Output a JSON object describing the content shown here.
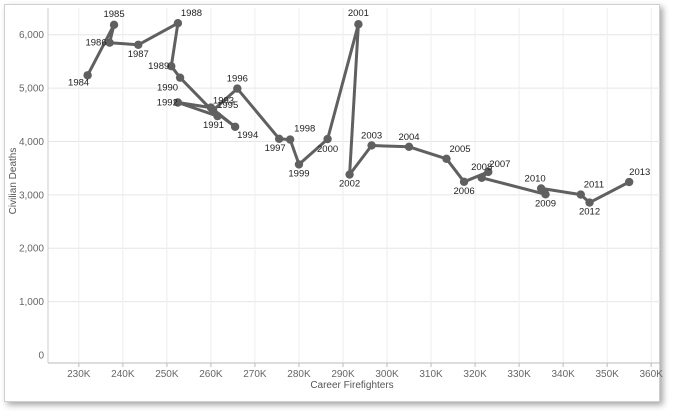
{
  "chart_data": {
    "type": "scatter",
    "connected": true,
    "xlabel": "Career Firefighters",
    "ylabel": "Civilian Deaths",
    "xlim": [
      223000,
      362000
    ],
    "ylim": [
      -150,
      6500
    ],
    "x_ticks": [
      230000,
      240000,
      250000,
      260000,
      270000,
      280000,
      290000,
      300000,
      310000,
      320000,
      330000,
      340000,
      350000,
      360000
    ],
    "x_tick_labels": [
      "230K",
      "240K",
      "250K",
      "260K",
      "270K",
      "280K",
      "290K",
      "300K",
      "310K",
      "320K",
      "330K",
      "340K",
      "350K",
      "360K"
    ],
    "y_ticks": [
      0,
      1000,
      2000,
      3000,
      4000,
      5000,
      6000
    ],
    "y_tick_labels": [
      "0",
      "1,000",
      "2,000",
      "3,000",
      "4,000",
      "5,000",
      "6,000"
    ],
    "grid": true,
    "line_color": "#606060",
    "points": [
      {
        "label": "1984",
        "x": 232000,
        "y": 5240
      },
      {
        "label": "1985",
        "x": 238000,
        "y": 6185
      },
      {
        "label": "1986",
        "x": 237000,
        "y": 5850
      },
      {
        "label": "1987",
        "x": 243500,
        "y": 5810
      },
      {
        "label": "1988",
        "x": 252500,
        "y": 6215
      },
      {
        "label": "1989",
        "x": 251000,
        "y": 5410
      },
      {
        "label": "1990",
        "x": 253000,
        "y": 5195
      },
      {
        "label": "1991",
        "x": 261500,
        "y": 4475
      },
      {
        "label": "1992",
        "x": 252500,
        "y": 4730
      },
      {
        "label": "1993",
        "x": 260000,
        "y": 4635
      },
      {
        "label": "1994",
        "x": 265500,
        "y": 4275
      },
      {
        "label": "1995",
        "x": 260500,
        "y": 4585
      },
      {
        "label": "1996",
        "x": 266000,
        "y": 4990
      },
      {
        "label": "1997",
        "x": 275500,
        "y": 4050
      },
      {
        "label": "1998",
        "x": 278000,
        "y": 4035
      },
      {
        "label": "1999",
        "x": 280000,
        "y": 3570
      },
      {
        "label": "2000",
        "x": 286500,
        "y": 4045
      },
      {
        "label": "2001",
        "x": 293500,
        "y": 6196
      },
      {
        "label": "2002",
        "x": 291500,
        "y": 3380
      },
      {
        "label": "2003",
        "x": 296500,
        "y": 3925
      },
      {
        "label": "2004",
        "x": 305000,
        "y": 3900
      },
      {
        "label": "2005",
        "x": 313500,
        "y": 3675
      },
      {
        "label": "2006",
        "x": 317500,
        "y": 3245
      },
      {
        "label": "2007",
        "x": 323000,
        "y": 3430
      },
      {
        "label": "2008",
        "x": 321500,
        "y": 3320
      },
      {
        "label": "2009",
        "x": 336000,
        "y": 3010
      },
      {
        "label": "2010",
        "x": 335000,
        "y": 3120
      },
      {
        "label": "2011",
        "x": 344000,
        "y": 3005
      },
      {
        "label": "2012",
        "x": 346000,
        "y": 2855
      },
      {
        "label": "2013",
        "x": 355000,
        "y": 3240
      }
    ]
  }
}
